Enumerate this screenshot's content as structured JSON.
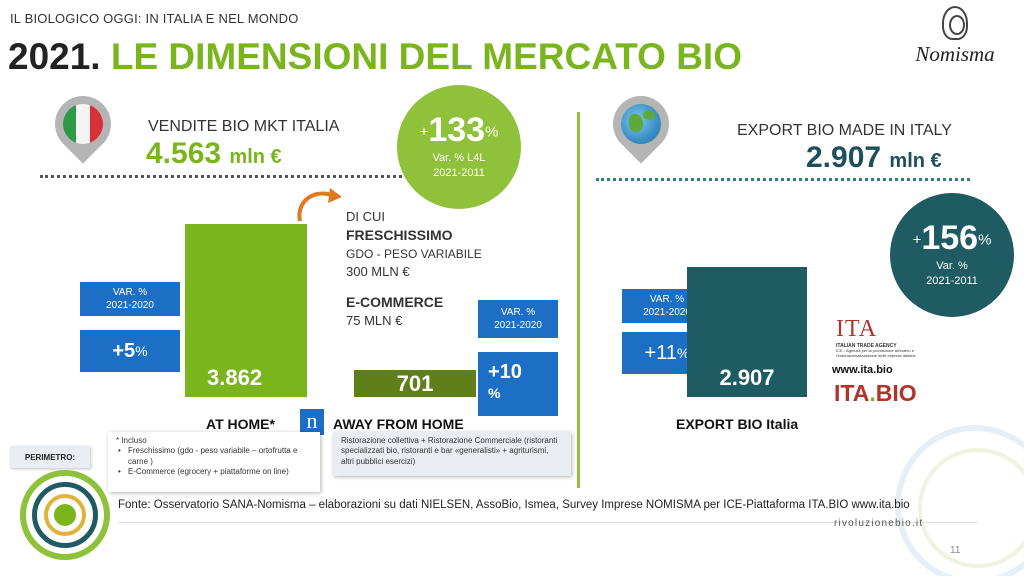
{
  "header": {
    "eyebrow": "IL BIOLOGICO OGGI: IN ITALIA E NEL MONDO",
    "title_number": "2021.",
    "title_text": "LE DIMENSIONI DEL MERCATO BIO",
    "brand": "Nomisma"
  },
  "italy": {
    "label": "VENDITE BIO MKT ITALIA",
    "value": "4.563",
    "unit": "mln €",
    "growth": {
      "sign": "+",
      "value": "133",
      "pct": "%",
      "line1": "Var. % L4L",
      "line2": "2021-2011"
    }
  },
  "export": {
    "label": "EXPORT BIO MADE IN ITALY",
    "value": "2.907",
    "unit": "mln €",
    "growth": {
      "sign": "+",
      "value": "156",
      "pct": "%",
      "line1": "Var. %",
      "line2": "2021-2011"
    }
  },
  "di_cui": {
    "title": "DI CUI",
    "item1_name": "FRESCHISSIMO",
    "item1_sub": "GDO - PESO VARIABILE",
    "item1_value": "300 MLN €",
    "item2_name": "E-COMMERCE",
    "item2_value": "75 MLN €"
  },
  "bars": {
    "at_home": {
      "value": "3.862",
      "label": "AT HOME*",
      "var_line1": "VAR. %",
      "var_line2": "2021-2020",
      "pct": "+5",
      "pct_sign": "%"
    },
    "away": {
      "value": "701",
      "label": "AWAY FROM HOME",
      "var_line1": "VAR. %",
      "var_line2": "2021-2020",
      "pct_line1": "+10",
      "pct_line2": "%"
    },
    "export": {
      "value": "2.907",
      "label": "EXPORT BIO Italia",
      "var_line1": "VAR. %",
      "var_line2": "2021-2020",
      "pct": "+11",
      "pct_sign": "%"
    }
  },
  "ita_logo": {
    "name": "ITA",
    "agency": "ITALIAN TRADE AGENCY",
    "agency_sub": "ICE - Agenzia per la promozione all'estero e l'internazionalizzazione delle imprese italiane",
    "url": "www.ita.bio",
    "bio_ita": "ITA",
    "bio_dot": ".",
    "bio_bio": "BIO"
  },
  "badge_letter": "n",
  "perimeter": {
    "label": "PERIMETRO:",
    "intro": "* Incluso",
    "items": [
      "Freschissimo (gdo - peso variabile – ortofrutta e carne )",
      "E-Commerce (egrocery + piattaforme on line)"
    ],
    "away_note": "Ristorazione collettiva + Ristorazione Commerciale (ristoranti specializzati bio, ristoranti e bar «generalisti» + agriturismi, altri pubblici esercizi)"
  },
  "footer": {
    "source": "Fonte: Osservatorio SANA-Nomisma – elaborazioni su dati NIELSEN, AssoBio, Ismea, Survey Imprese NOMISMA per ICE-Piattaforma ITA.BIO www.ita.bio",
    "site": "rivoluzionebio.it",
    "page": "11"
  },
  "colors": {
    "green": "#7ab51d",
    "olive": "#5e7f1a",
    "teal": "#1f5b63",
    "blue": "#1c6fc4",
    "orange": "#e07a1f"
  }
}
